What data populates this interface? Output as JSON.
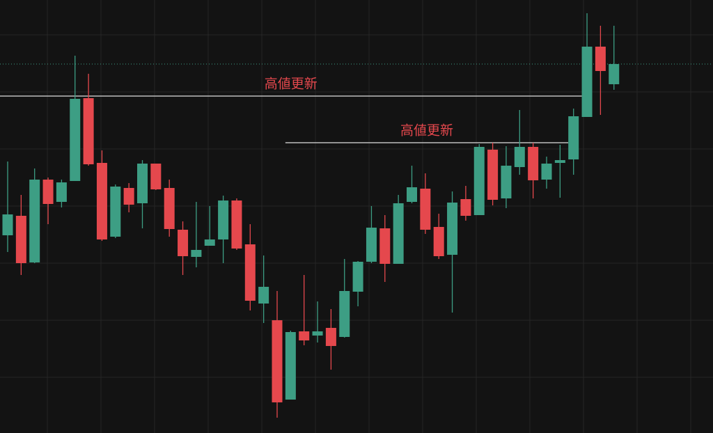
{
  "chart_data": {
    "type": "candlestick",
    "open": [
      284,
      312,
      245,
      364,
      332,
      362,
      481,
      388,
      282,
      352,
      330,
      387,
      352,
      292,
      253,
      269,
      278,
      334,
      271,
      186,
      162,
      48,
      146,
      140,
      151,
      138,
      203,
      246,
      294,
      243,
      332,
      351,
      296,
      256,
      336,
      313,
      407,
      337,
      382,
      411,
      364,
      388,
      393,
      454,
      555,
      501
    ],
    "high": [
      390,
      342,
      380,
      367,
      364,
      542,
      516,
      406,
      357,
      359,
      392,
      387,
      364,
      304,
      332,
      326,
      341,
      337,
      300,
      255,
      204,
      147,
      227,
      189,
      178,
      250,
      247,
      326,
      313,
      342,
      384,
      373,
      315,
      347,
      355,
      415,
      417,
      412,
      464,
      417,
      397,
      414,
      466,
      603,
      585,
      585
    ],
    "low": [
      260,
      227,
      244,
      300,
      324,
      362,
      384,
      276,
      280,
      317,
      294,
      349,
      282,
      227,
      238,
      269,
      244,
      263,
      176,
      158,
      22,
      48,
      126,
      130,
      91,
      137,
      182,
      244,
      217,
      243,
      330,
      286,
      250,
      173,
      305,
      313,
      327,
      323,
      371,
      337,
      351,
      338,
      371,
      454,
      457,
      493
    ],
    "close": [
      314,
      244,
      364,
      329,
      360,
      480,
      386,
      278,
      354,
      328,
      387,
      350,
      293,
      254,
      263,
      278,
      334,
      265,
      190,
      210,
      44,
      145,
      133,
      146,
      125,
      204,
      246,
      295,
      243,
      330,
      353,
      292,
      254,
      331,
      312,
      411,
      335,
      384,
      411,
      363,
      387,
      392,
      455,
      555,
      520,
      530
    ],
    "up_color": "#3d9e84",
    "down_color": "#e5484d",
    "ylim": [
      0,
      622
    ],
    "grid": true,
    "annotations": [
      {
        "text": "高値更新",
        "level": 484
      },
      {
        "text": "高値更新",
        "level": 417
      }
    ]
  }
}
